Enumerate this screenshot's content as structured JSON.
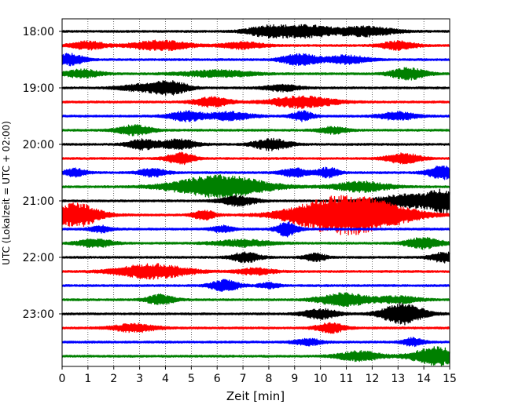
{
  "chart_data": {
    "type": "line",
    "title": "",
    "xlabel": "Zeit  [min]",
    "ylabel": "UTC (Lokalzeit = UTC + 02:00)",
    "xlim": [
      0,
      15
    ],
    "x_ticks": [
      0,
      1,
      2,
      3,
      4,
      5,
      6,
      7,
      8,
      9,
      10,
      11,
      12,
      13,
      14,
      15
    ],
    "y_tick_labels": [
      "18:00",
      "19:00",
      "20:00",
      "21:00",
      "22:00",
      "23:00"
    ],
    "grid": "vertical dotted",
    "trace_interval_min": 15,
    "trace_color_cycle": [
      "#000000",
      "#ff0000",
      "#0000ff",
      "#008000"
    ],
    "traces": [
      {
        "start": "18:00",
        "bursts": [
          [
            8.0,
            0.6,
            7
          ],
          [
            9.5,
            0.7,
            7
          ],
          [
            11.7,
            0.8,
            6
          ]
        ]
      },
      {
        "start": "18:15",
        "bursts": [
          [
            1.0,
            0.5,
            5
          ],
          [
            3.8,
            0.8,
            6
          ],
          [
            7.0,
            0.6,
            4
          ],
          [
            13.0,
            0.5,
            5
          ]
        ]
      },
      {
        "start": "18:30",
        "bursts": [
          [
            0.3,
            0.4,
            7
          ],
          [
            9.2,
            0.5,
            7
          ],
          [
            11.0,
            0.6,
            5
          ]
        ]
      },
      {
        "start": "18:45",
        "bursts": [
          [
            0.8,
            0.5,
            5
          ],
          [
            6.0,
            1.0,
            4
          ],
          [
            13.4,
            0.5,
            7
          ]
        ]
      },
      {
        "start": "19:00",
        "bursts": [
          [
            4.2,
            0.5,
            8
          ],
          [
            3.0,
            0.6,
            4
          ],
          [
            8.5,
            0.5,
            4
          ]
        ]
      },
      {
        "start": "19:15",
        "bursts": [
          [
            5.8,
            0.5,
            6
          ],
          [
            9.3,
            0.9,
            7
          ]
        ]
      },
      {
        "start": "19:30",
        "bursts": [
          [
            4.8,
            0.5,
            6
          ],
          [
            6.5,
            0.6,
            5
          ],
          [
            9.3,
            0.3,
            6
          ],
          [
            13.0,
            0.5,
            5
          ]
        ]
      },
      {
        "start": "19:45",
        "bursts": [
          [
            2.8,
            0.5,
            6
          ],
          [
            10.5,
            0.4,
            4
          ]
        ]
      },
      {
        "start": "20:00",
        "bursts": [
          [
            3.1,
            0.4,
            6
          ],
          [
            4.5,
            0.5,
            6
          ],
          [
            8.1,
            0.5,
            7
          ]
        ]
      },
      {
        "start": "20:15",
        "bursts": [
          [
            4.6,
            0.4,
            7
          ],
          [
            13.2,
            0.5,
            6
          ]
        ]
      },
      {
        "start": "20:30",
        "bursts": [
          [
            0.5,
            0.3,
            5
          ],
          [
            3.5,
            0.4,
            5
          ],
          [
            9.0,
            0.4,
            5
          ],
          [
            10.3,
            0.3,
            6
          ],
          [
            14.7,
            0.4,
            8
          ]
        ]
      },
      {
        "start": "20:45",
        "bursts": [
          [
            6.1,
            1.3,
            14
          ],
          [
            11.6,
            0.8,
            6
          ]
        ]
      },
      {
        "start": "21:00",
        "bursts": [
          [
            6.8,
            0.5,
            6
          ],
          [
            13.5,
            1.0,
            8
          ],
          [
            14.9,
            0.5,
            12
          ]
        ]
      },
      {
        "start": "21:15",
        "bursts": [
          [
            0.5,
            0.7,
            15
          ],
          [
            5.5,
            0.3,
            6
          ],
          [
            10.3,
            1.2,
            17
          ],
          [
            12.0,
            1.2,
            15
          ]
        ]
      },
      {
        "start": "21:30",
        "bursts": [
          [
            1.5,
            0.3,
            4
          ],
          [
            6.2,
            0.3,
            4
          ],
          [
            8.7,
            0.3,
            9
          ]
        ]
      },
      {
        "start": "21:45",
        "bursts": [
          [
            1.3,
            0.5,
            5
          ],
          [
            7.0,
            0.8,
            4
          ],
          [
            14.0,
            0.5,
            7
          ]
        ]
      },
      {
        "start": "22:00",
        "bursts": [
          [
            7.1,
            0.4,
            6
          ],
          [
            9.8,
            0.3,
            5
          ],
          [
            14.8,
            0.4,
            6
          ]
        ]
      },
      {
        "start": "22:15",
        "bursts": [
          [
            3.5,
            1.0,
            9
          ],
          [
            7.5,
            0.5,
            4
          ]
        ]
      },
      {
        "start": "22:30",
        "bursts": [
          [
            6.3,
            0.4,
            7
          ],
          [
            8.0,
            0.3,
            3
          ]
        ]
      },
      {
        "start": "22:45",
        "bursts": [
          [
            3.8,
            0.4,
            6
          ],
          [
            10.9,
            0.7,
            8
          ],
          [
            13.0,
            0.6,
            4
          ]
        ]
      },
      {
        "start": "23:00",
        "bursts": [
          [
            10.0,
            0.5,
            6
          ],
          [
            13.2,
            0.6,
            13
          ]
        ]
      },
      {
        "start": "23:15",
        "bursts": [
          [
            2.8,
            0.6,
            5
          ],
          [
            10.4,
            0.4,
            6
          ]
        ]
      },
      {
        "start": "23:30",
        "bursts": [
          [
            9.5,
            0.4,
            4
          ],
          [
            13.6,
            0.3,
            5
          ]
        ]
      },
      {
        "start": "23:45",
        "bursts": [
          [
            11.5,
            0.6,
            6
          ],
          [
            14.5,
            0.7,
            11
          ]
        ]
      }
    ]
  }
}
